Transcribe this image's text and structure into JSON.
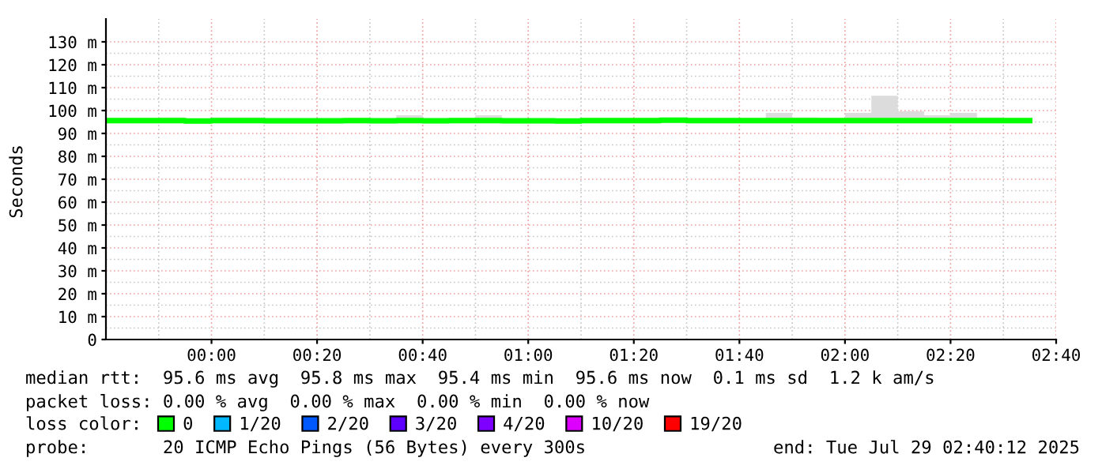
{
  "chart_data": {
    "type": "step",
    "ylabel": "Seconds",
    "x": [
      -0.3333,
      -0.25,
      -0.1667,
      -0.0833,
      0,
      0.0833,
      0.1667,
      0.25,
      0.3333,
      0.4167,
      0.5,
      0.5833,
      0.6667,
      0.75,
      0.8333,
      0.9167,
      1,
      1.0833,
      1.1667,
      1.25,
      1.3333,
      1.4167,
      1.5,
      1.5833,
      1.6667,
      1.75,
      1.8333,
      1.9167,
      2,
      2.0833,
      2.1667,
      2.25,
      2.3333,
      2.4167,
      2.5,
      2.5833
    ],
    "series": [
      {
        "name": "0",
        "color": "#00ff00",
        "values": [
          95.6,
          95.6,
          95.6,
          95.4,
          95.6,
          95.6,
          95.5,
          95.5,
          95.5,
          95.6,
          95.5,
          95.6,
          95.5,
          95.6,
          95.6,
          95.5,
          95.5,
          95.4,
          95.6,
          95.6,
          95.6,
          95.8,
          95.6,
          95.6,
          95.6,
          95.6,
          95.6,
          95.6,
          95.6,
          95.6,
          95.6,
          95.6,
          95.6,
          95.6,
          95.6,
          95.6
        ],
        "lower": [
          94.8,
          94.8,
          94.8,
          94.8,
          94.8,
          94.8,
          94.8,
          94.8,
          94.8,
          94.8,
          94.8,
          94.8,
          94.8,
          94.8,
          94.8,
          94.8,
          94.8,
          94.8,
          94.8,
          94.8,
          94.8,
          94.8,
          94.8,
          94.8,
          94.8,
          94.8,
          94.8,
          94.8,
          94.8,
          94.8,
          94.8,
          94.8,
          94.8,
          94.8,
          94.8,
          94.8
        ],
        "upper": [
          96.2,
          96.2,
          97,
          96.2,
          97,
          97,
          96.2,
          96.2,
          96.2,
          96.2,
          96.2,
          97.9,
          96.2,
          96.2,
          97.9,
          96.2,
          96.2,
          96.2,
          96.2,
          96.2,
          96.2,
          96.2,
          96.2,
          96.2,
          96.2,
          99,
          97,
          96.2,
          99,
          106.5,
          99.7,
          97.9,
          99,
          97,
          96.2,
          96.2
        ]
      },
      {
        "name": "1/20",
        "color": "#00b8ff",
        "values": [
          null,
          null,
          null,
          null,
          null,
          null,
          null,
          null,
          null,
          null,
          null,
          null,
          null,
          null,
          null,
          null,
          null,
          null,
          null,
          null,
          null,
          null,
          null,
          null,
          null,
          null,
          null,
          null,
          null,
          null,
          null,
          null,
          null,
          null,
          null,
          null
        ]
      },
      {
        "name": "2/20",
        "color": "#0059ff",
        "values": [
          null,
          null,
          null,
          null,
          null,
          null,
          null,
          null,
          null,
          null,
          null,
          null,
          null,
          null,
          null,
          null,
          null,
          null,
          null,
          null,
          null,
          null,
          null,
          null,
          null,
          null,
          null,
          null,
          null,
          null,
          null,
          null,
          null,
          null,
          null,
          null
        ]
      },
      {
        "name": "3/20",
        "color": "#5e00ff",
        "values": [
          null,
          null,
          null,
          null,
          null,
          null,
          null,
          null,
          null,
          null,
          null,
          null,
          null,
          null,
          null,
          null,
          null,
          null,
          null,
          null,
          null,
          null,
          null,
          null,
          null,
          null,
          null,
          null,
          null,
          null,
          null,
          null,
          null,
          null,
          null,
          null
        ]
      },
      {
        "name": "4/20",
        "color": "#7e00ff",
        "values": [
          null,
          null,
          null,
          null,
          null,
          null,
          null,
          null,
          null,
          null,
          null,
          null,
          null,
          null,
          null,
          null,
          null,
          null,
          null,
          null,
          null,
          null,
          null,
          null,
          null,
          null,
          null,
          null,
          null,
          null,
          null,
          null,
          null,
          null,
          null,
          null
        ]
      },
      {
        "name": "10/20",
        "color": "#dd00ff",
        "values": [
          null,
          null,
          null,
          null,
          null,
          null,
          null,
          null,
          null,
          null,
          null,
          null,
          null,
          null,
          null,
          null,
          null,
          null,
          null,
          null,
          null,
          null,
          null,
          null,
          null,
          null,
          null,
          null,
          null,
          null,
          null,
          null,
          null,
          null,
          null,
          null
        ]
      },
      {
        "name": "19/20",
        "color": "#ff0000",
        "values": [
          null,
          null,
          null,
          null,
          null,
          null,
          null,
          null,
          null,
          null,
          null,
          null,
          null,
          null,
          null,
          null,
          null,
          null,
          null,
          null,
          null,
          null,
          null,
          null,
          null,
          null,
          null,
          null,
          null,
          null,
          null,
          null,
          null,
          null,
          null,
          null
        ]
      }
    ],
    "xlim": [
      -0.3333,
      2.6667
    ],
    "xticks": [
      {
        "value": 0,
        "label": "00:00"
      },
      {
        "value": 0.3333,
        "label": "00:20"
      },
      {
        "value": 0.6667,
        "label": "00:40"
      },
      {
        "value": 1,
        "label": "01:00"
      },
      {
        "value": 1.3333,
        "label": "01:20"
      },
      {
        "value": 1.6667,
        "label": "01:40"
      },
      {
        "value": 2,
        "label": "02:00"
      },
      {
        "value": 2.3333,
        "label": "02:20"
      },
      {
        "value": 2.6667,
        "label": "02:40"
      }
    ],
    "ylim": [
      0,
      140
    ],
    "yticks": [
      0,
      {
        "value": 10,
        "label": "10 m"
      },
      {
        "value": 20,
        "label": "20 m"
      },
      {
        "value": 30,
        "label": "30 m"
      },
      {
        "value": 40,
        "label": "40 m"
      },
      {
        "value": 50,
        "label": "50 m"
      },
      {
        "value": 60,
        "label": "60 m"
      },
      {
        "value": 70,
        "label": "70 m"
      },
      {
        "value": 80,
        "label": "80 m"
      },
      {
        "value": 90,
        "label": "90 m"
      },
      {
        "value": 100,
        "label": "100 m"
      },
      {
        "value": 110,
        "label": "110 m"
      },
      {
        "value": 120,
        "label": "120 m"
      },
      {
        "value": 130,
        "label": "130 m"
      }
    ],
    "grid": true,
    "legend": "bottom",
    "legend_title": "loss color:",
    "annotations": [
      "median rtt:  95.6 ms avg  95.8 ms max  95.4 ms min  95.6 ms now  0.1 ms sd  1.2 k am/s",
      "packet loss: 0.00 % avg  0.00 % max  0.00 % min  0.00 % now",
      "probe:       20 ICMP Echo Pings (56 Bytes) every 300s",
      "end: Tue Jul 29 02:40:12 2025"
    ]
  }
}
